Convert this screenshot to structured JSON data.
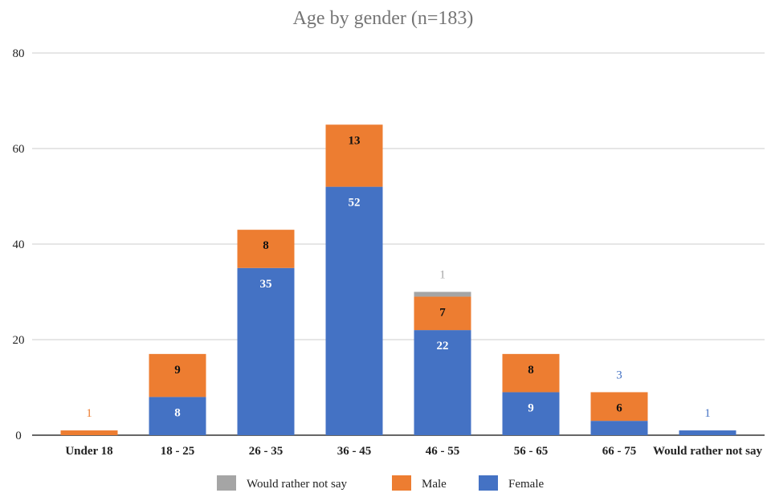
{
  "chart_data": {
    "type": "bar",
    "stacked": true,
    "title": "Age by gender (n=183)",
    "xlabel": "",
    "ylabel": "",
    "ylim": [
      0,
      80
    ],
    "yticks": [
      "0",
      "20",
      "40",
      "60",
      "80"
    ],
    "grid": true,
    "legend_position": "bottom",
    "categories": [
      "Under 18",
      "18 - 25",
      "26 - 35",
      "36 - 45",
      "46 - 55",
      "56 - 65",
      "66 - 75",
      "Would rather not say"
    ],
    "series": [
      {
        "name": "Female",
        "color": "#4472C4",
        "values": [
          0,
          8,
          35,
          52,
          22,
          9,
          3,
          1
        ]
      },
      {
        "name": "Male",
        "color": "#ED7D31",
        "values": [
          1,
          9,
          8,
          13,
          7,
          8,
          6,
          0
        ]
      },
      {
        "name": "Would rather not say",
        "color": "#A5A5A5",
        "values": [
          0,
          0,
          0,
          0,
          1,
          0,
          0,
          0
        ]
      }
    ],
    "legend_order": [
      "Would rather not say",
      "Male",
      "Female"
    ]
  }
}
